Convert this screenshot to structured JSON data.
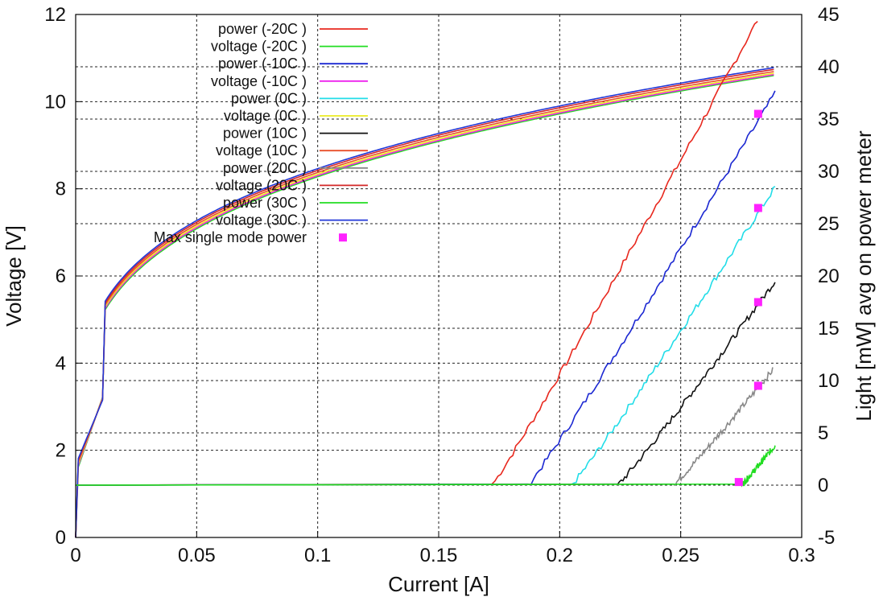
{
  "chart_data": {
    "type": "line",
    "title": "",
    "xlabel": "Current [A]",
    "ylabel": "Voltage [V]",
    "y2label": "Light [mW] avg on power meter",
    "xlim": [
      0,
      0.3
    ],
    "ylim": [
      0,
      12
    ],
    "y2lim": [
      -5,
      45
    ],
    "grid": true,
    "legend_position": "top-left",
    "x_ticks": [
      "0",
      "0.05",
      "0.1",
      "0.15",
      "0.2",
      "0.25",
      "0.3"
    ],
    "y_ticks": [
      "0",
      "2",
      "4",
      "6",
      "8",
      "10",
      "12"
    ],
    "y2_ticks": [
      "-5",
      "0",
      "5",
      "10",
      "15",
      "20",
      "25",
      "30",
      "35",
      "40",
      "45"
    ],
    "series": [
      {
        "name": "power (-20C )",
        "axis": "y2",
        "color": "#e8281e",
        "threshold": 0.172,
        "x_end": 0.283,
        "end": 45
      },
      {
        "name": "voltage (-20C )",
        "axis": "y",
        "color": "#22dd22",
        "vmax": 11.05
      },
      {
        "name": "power (-10C )",
        "axis": "y2",
        "color": "#1c28d2",
        "threshold": 0.187,
        "x_end": 0.289,
        "end": 37.5
      },
      {
        "name": "voltage (-10C )",
        "axis": "y",
        "color": "#ee22ee",
        "vmax": 10.98
      },
      {
        "name": "power (0C )",
        "axis": "y2",
        "color": "#22dde8",
        "threshold": 0.205,
        "x_end": 0.289,
        "end": 28.5
      },
      {
        "name": "voltage (0C )",
        "axis": "y",
        "color": "#ecec22",
        "vmax": 10.92
      },
      {
        "name": "power (10C )",
        "axis": "y2",
        "color": "#111111",
        "threshold": 0.224,
        "x_end": 0.289,
        "end": 19.5
      },
      {
        "name": "voltage (10C )",
        "axis": "y",
        "color": "#e8502a",
        "vmax": 10.87
      },
      {
        "name": "power (20C )",
        "axis": "y2",
        "color": "#888888",
        "threshold": 0.247,
        "x_end": 0.288,
        "end": 11
      },
      {
        "name": "voltage (20C )",
        "axis": "y",
        "color": "#d42828",
        "vmax": 10.83
      },
      {
        "name": "power (30C )",
        "axis": "y2",
        "color": "#22dd22",
        "threshold": 0.275,
        "x_end": 0.289,
        "end": 3.8
      },
      {
        "name": "voltage (30C )",
        "axis": "y",
        "color": "#2238d8",
        "vmax": 10.78
      }
    ],
    "markers": {
      "name": "Max single mode power",
      "axis": "y2",
      "color": "#ff22ff",
      "points": [
        {
          "x": 0.282,
          "y": 35.5
        },
        {
          "x": 0.282,
          "y": 26.5
        },
        {
          "x": 0.282,
          "y": 17.5
        },
        {
          "x": 0.282,
          "y": 9.5
        },
        {
          "x": 0.274,
          "y": 0.3
        }
      ]
    }
  }
}
